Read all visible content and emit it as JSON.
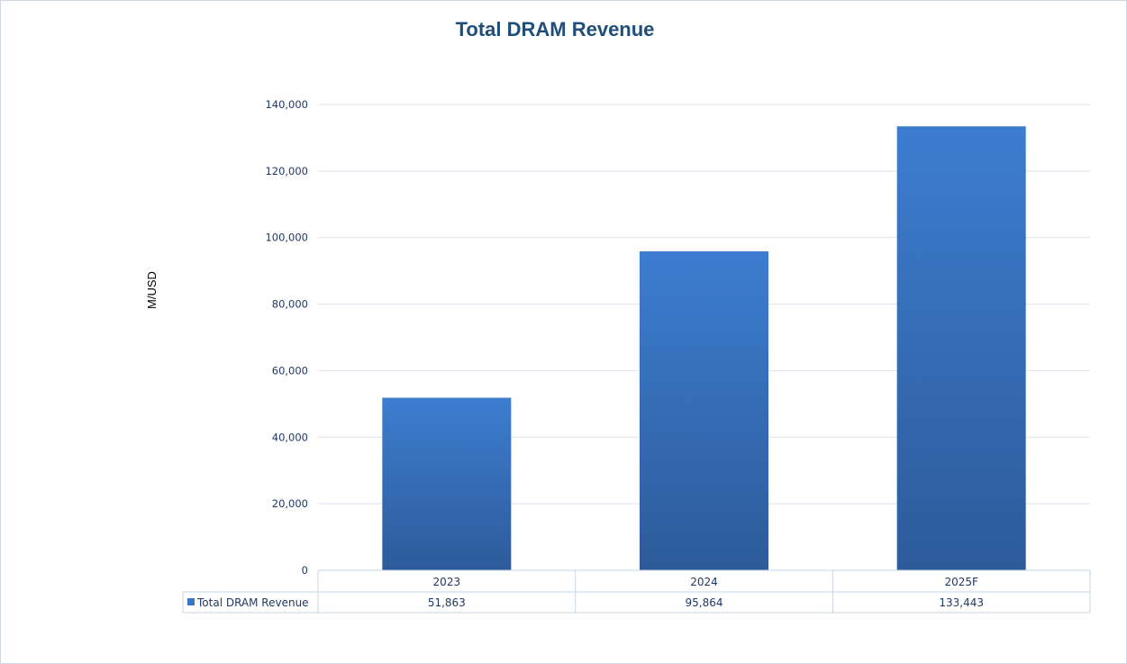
{
  "chart_data": {
    "type": "bar",
    "title": "Total DRAM Revenue",
    "ylabel": "M/USD",
    "xlabel": "",
    "categories": [
      "2023",
      "2024",
      "2025F"
    ],
    "series": [
      {
        "name": "Total DRAM Revenue",
        "values": [
          51863,
          95864,
          133443
        ],
        "value_labels": [
          "51,863",
          "95,864",
          "133,443"
        ]
      }
    ],
    "ylim": [
      0,
      140000
    ],
    "yticks": [
      0,
      20000,
      40000,
      60000,
      80000,
      100000,
      120000,
      140000
    ],
    "ytick_labels": [
      "0",
      "20,000",
      "40,000",
      "60,000",
      "80,000",
      "100,000",
      "120,000",
      "140,000"
    ],
    "grid": true,
    "data_table": true,
    "colors": {
      "bar_top": "#3d7dd0",
      "bar_bottom": "#2d5b9a",
      "title": "#1f4e79",
      "legend_marker": "#3a76c4"
    }
  }
}
